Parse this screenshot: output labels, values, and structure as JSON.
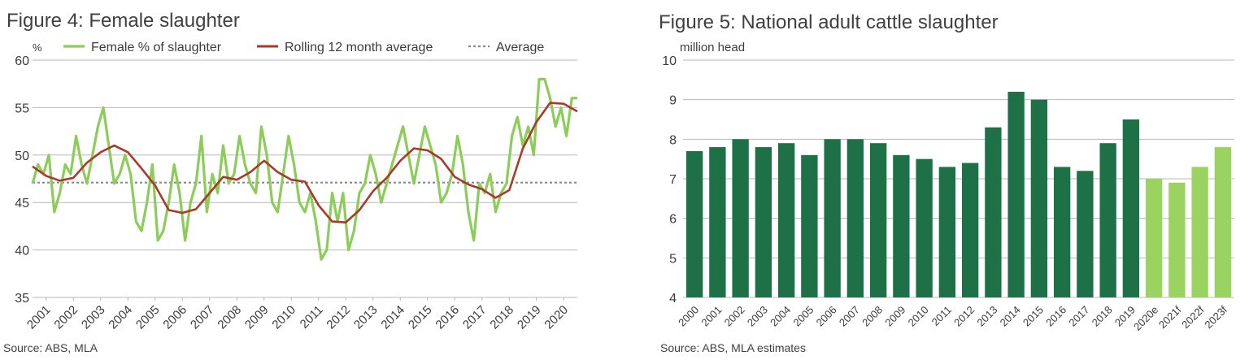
{
  "figures": {
    "fig4": {
      "title": "Figure 4: Female slaughter",
      "source": "Source: ABS, MLA"
    },
    "fig5": {
      "title": "Figure 5: National adult cattle slaughter",
      "source": "Source: ABS, MLA estimates"
    }
  },
  "colors": {
    "light_green": "#8ccd5a",
    "dark_red": "#a83a2a",
    "avg_grey": "#8a8a8a",
    "dark_green": "#1e7046",
    "bar_light_green": "#9ad35f",
    "grid": "#b8b8b8"
  },
  "chart_data": [
    {
      "type": "line",
      "title": "Figure 4: Female slaughter",
      "ylabel": "%",
      "ylim": [
        35,
        60
      ],
      "yticks": [
        35,
        40,
        45,
        50,
        55,
        60
      ],
      "xlim": [
        2000.5,
        2020.5
      ],
      "xticks": [
        "2001",
        "2002",
        "2003",
        "2004",
        "2005",
        "2006",
        "2007",
        "2008",
        "2009",
        "2010",
        "2011",
        "2012",
        "2013",
        "2014",
        "2015",
        "2016",
        "2017",
        "2018",
        "2019",
        "2020"
      ],
      "grid": true,
      "legend_position": "top",
      "series": [
        {
          "name": "Female % of slaughter",
          "x": [
            2000.5,
            2000.7,
            2000.9,
            2001.1,
            2001.3,
            2001.5,
            2001.7,
            2001.9,
            2002.1,
            2002.3,
            2002.5,
            2002.7,
            2002.9,
            2003.1,
            2003.3,
            2003.5,
            2003.7,
            2003.9,
            2004.1,
            2004.3,
            2004.5,
            2004.7,
            2004.9,
            2005.1,
            2005.3,
            2005.5,
            2005.7,
            2005.9,
            2006.1,
            2006.3,
            2006.5,
            2006.7,
            2006.9,
            2007.1,
            2007.3,
            2007.5,
            2007.7,
            2007.9,
            2008.1,
            2008.3,
            2008.5,
            2008.7,
            2008.9,
            2009.1,
            2009.3,
            2009.5,
            2009.7,
            2009.9,
            2010.1,
            2010.3,
            2010.5,
            2010.7,
            2010.9,
            2011.1,
            2011.3,
            2011.5,
            2011.7,
            2011.9,
            2012.1,
            2012.3,
            2012.5,
            2012.7,
            2012.9,
            2013.1,
            2013.3,
            2013.5,
            2013.7,
            2013.9,
            2014.1,
            2014.3,
            2014.5,
            2014.7,
            2014.9,
            2015.1,
            2015.3,
            2015.5,
            2015.7,
            2015.9,
            2016.1,
            2016.3,
            2016.5,
            2016.7,
            2016.9,
            2017.1,
            2017.3,
            2017.5,
            2017.7,
            2017.9,
            2018.1,
            2018.3,
            2018.5,
            2018.7,
            2018.9,
            2019.1,
            2019.3,
            2019.5,
            2019.7,
            2019.9,
            2020.1,
            2020.3,
            2020.5
          ],
          "values": [
            47,
            49,
            48,
            50,
            44,
            46,
            49,
            48,
            52,
            49,
            47,
            50,
            53,
            55,
            51,
            47,
            48,
            50,
            48,
            43,
            42,
            45,
            49,
            41,
            42,
            45,
            49,
            46,
            41,
            45,
            47,
            52,
            44,
            48,
            46,
            51,
            47,
            48,
            52,
            49,
            47,
            46,
            53,
            50,
            45,
            44,
            48,
            52,
            49,
            45,
            44,
            46,
            43,
            39,
            40,
            46,
            43,
            46,
            40,
            42,
            46,
            47,
            50,
            48,
            45,
            47,
            49,
            51,
            53,
            50,
            47,
            50,
            53,
            51,
            49,
            45,
            46,
            48,
            52,
            49,
            44,
            41,
            47,
            46,
            48,
            44,
            46,
            47,
            52,
            54,
            51,
            53,
            50,
            58,
            58,
            56,
            53,
            55,
            52,
            56,
            56
          ]
        },
        {
          "name": "Rolling 12 month average",
          "x": [
            2000.5,
            2001.0,
            2001.5,
            2002.0,
            2002.5,
            2003.0,
            2003.5,
            2004.0,
            2004.5,
            2005.0,
            2005.5,
            2006.0,
            2006.5,
            2007.0,
            2007.5,
            2008.0,
            2008.5,
            2009.0,
            2009.5,
            2010.0,
            2010.5,
            2011.0,
            2011.5,
            2012.0,
            2012.5,
            2013.0,
            2013.5,
            2014.0,
            2014.5,
            2015.0,
            2015.5,
            2016.0,
            2016.5,
            2017.0,
            2017.5,
            2018.0,
            2018.5,
            2019.0,
            2019.5,
            2020.0,
            2020.5
          ],
          "values": [
            48.8,
            47.8,
            47.3,
            47.6,
            49.2,
            50.3,
            51.0,
            50.3,
            48.6,
            46.8,
            44.2,
            43.9,
            44.3,
            46.0,
            47.7,
            47.4,
            48.2,
            49.4,
            48.2,
            47.4,
            47.2,
            44.7,
            43.0,
            42.9,
            44.2,
            46.2,
            47.6,
            49.4,
            50.7,
            50.5,
            49.6,
            47.7,
            46.9,
            46.4,
            45.5,
            46.3,
            50.7,
            53.5,
            55.5,
            55.4,
            54.6
          ]
        },
        {
          "name": "Average",
          "values": [
            47.1
          ]
        }
      ]
    },
    {
      "type": "bar",
      "title": "Figure 5: National adult cattle slaughter",
      "ylabel": "million head",
      "ylim": [
        4,
        10
      ],
      "yticks": [
        4,
        5,
        6,
        7,
        8,
        9,
        10
      ],
      "grid": true,
      "categories": [
        "2000",
        "2001",
        "2002",
        "2003",
        "2004",
        "2005",
        "2006",
        "2007",
        "2008",
        "2009",
        "2010",
        "2011",
        "2012",
        "2013",
        "2014",
        "2015",
        "2016",
        "2017",
        "2018",
        "2019",
        "2020e",
        "2021f",
        "2022f",
        "2023f"
      ],
      "values": [
        7.7,
        7.8,
        8.0,
        7.8,
        7.9,
        7.6,
        8.0,
        8.0,
        7.9,
        7.6,
        7.5,
        7.3,
        7.4,
        8.3,
        9.2,
        9.0,
        7.3,
        7.2,
        7.9,
        8.5,
        7.0,
        6.9,
        7.3,
        7.8
      ],
      "forecast_from_index": 20
    }
  ]
}
